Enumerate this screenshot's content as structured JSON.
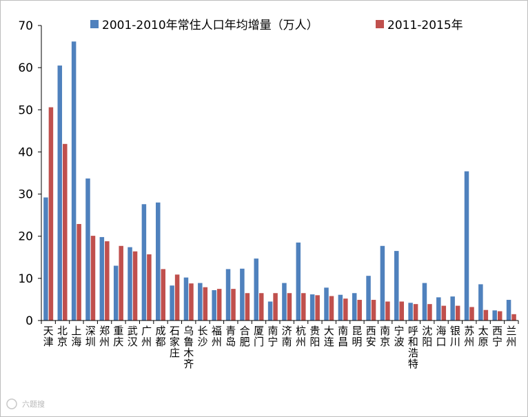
{
  "chart_data": {
    "type": "bar",
    "title": "",
    "xlabel": "",
    "ylabel": "",
    "ylim": [
      0,
      70
    ],
    "yticks": [
      "0",
      "10",
      "20",
      "30",
      "40",
      "50",
      "60",
      "70"
    ],
    "grid": false,
    "legend_position": "top",
    "categories": [
      "天津",
      "北京",
      "上海",
      "深圳",
      "郑州",
      "重庆",
      "武汉",
      "广州",
      "成都",
      "石家庄",
      "乌鲁木齐",
      "长沙",
      "福州",
      "青岛",
      "合肥",
      "厦门",
      "南宁",
      "济南",
      "杭州",
      "贵阳",
      "大连",
      "南昌",
      "昆明",
      "西安",
      "南京",
      "宁波",
      "呼和浩特",
      "沈阳",
      "海口",
      "银川",
      "苏州",
      "太原",
      "西宁",
      "兰州"
    ],
    "series": [
      {
        "name": "2001-2010年常住人口年均增量（万人）",
        "color": "#4F81BD",
        "values": [
          29.2,
          60.5,
          66.2,
          33.7,
          19.8,
          13.0,
          17.4,
          27.6,
          28.0,
          8.3,
          10.2,
          8.9,
          7.2,
          12.2,
          12.3,
          14.7,
          4.5,
          8.9,
          18.5,
          6.2,
          7.8,
          6.1,
          6.5,
          10.6,
          17.7,
          16.5,
          4.2,
          8.9,
          5.5,
          5.7,
          35.4,
          8.6,
          2.4,
          4.9
        ]
      },
      {
        "name": "2011-2015年",
        "color": "#C0504D",
        "values": [
          50.6,
          41.9,
          22.9,
          20.1,
          18.8,
          17.7,
          16.4,
          15.7,
          12.2,
          10.9,
          8.8,
          7.9,
          7.5,
          7.5,
          6.5,
          6.5,
          6.5,
          6.5,
          6.5,
          6.0,
          5.8,
          5.2,
          4.9,
          4.9,
          4.5,
          4.5,
          3.9,
          3.9,
          3.5,
          3.5,
          3.2,
          2.5,
          2.2,
          1.5
        ]
      }
    ]
  },
  "watermark": {
    "text": "六题搜",
    "icon": "watermark-logo-icon"
  }
}
